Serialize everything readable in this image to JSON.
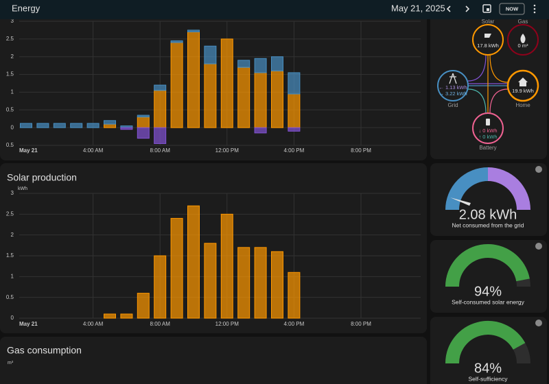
{
  "header": {
    "title": "Energy",
    "date": "May 21, 2025",
    "now_button": "NOW"
  },
  "chart_data": [
    {
      "type": "stacked-bar",
      "categories": [
        "May 21",
        null,
        null,
        null,
        "4:00 AM",
        null,
        null,
        null,
        "8:00 AM",
        null,
        null,
        null,
        "12:00 PM",
        null,
        null,
        null,
        "4:00 PM",
        null,
        null,
        null,
        "8:00 PM",
        null,
        null,
        null
      ],
      "series": [
        {
          "color": "#ff9800",
          "values": [
            0,
            0,
            0,
            0,
            0,
            0.1,
            0,
            0.3,
            1.05,
            2.4,
            2.7,
            1.8,
            2.5,
            1.7,
            1.55,
            1.6,
            0.95,
            null,
            null,
            null,
            null,
            null,
            null,
            null
          ]
        },
        {
          "color": "#488fc2",
          "values": [
            0.12,
            0.12,
            0.12,
            0.12,
            0.12,
            0.1,
            0.05,
            0.05,
            0.15,
            0.05,
            0.05,
            0.5,
            0,
            0.2,
            0.4,
            0.4,
            0.6,
            null,
            null,
            null,
            null,
            null,
            null,
            null
          ]
        },
        {
          "color": "#8353d4",
          "values": [
            0,
            0,
            0,
            0,
            0,
            0,
            -0.05,
            -0.3,
            -0.45,
            0,
            0,
            0,
            0,
            0,
            -0.15,
            0,
            -0.1,
            null,
            null,
            null,
            null,
            null,
            null,
            null
          ]
        }
      ],
      "ylim": [
        -0.5,
        3
      ],
      "yticks": [
        {
          "value": -0.5,
          "label": "0.5"
        },
        0,
        0.5,
        1,
        1.5,
        2,
        2.5,
        3
      ],
      "grid": true
    },
    {
      "type": "bar",
      "title": "Solar production",
      "y_label": "kWh",
      "categories": [
        "May 21",
        null,
        null,
        null,
        "4:00 AM",
        null,
        null,
        null,
        "8:00 AM",
        null,
        null,
        null,
        "12:00 PM",
        null,
        null,
        null,
        "4:00 PM",
        null,
        null,
        null,
        "8:00 PM",
        null,
        null,
        null
      ],
      "values": [
        null,
        null,
        null,
        null,
        null,
        0.1,
        0.1,
        0.6,
        1.5,
        2.4,
        2.7,
        1.8,
        2.5,
        1.7,
        1.7,
        1.6,
        1.1,
        null,
        null,
        null,
        null,
        null,
        null,
        null
      ],
      "color": "#ff9800",
      "ylim": [
        0,
        3
      ],
      "yticks": [
        0,
        0.5,
        1,
        1.5,
        2,
        2.5,
        3
      ],
      "grid": true
    }
  ],
  "distribution": {
    "solar": {
      "label": "Solar",
      "value": "17.8 kWh"
    },
    "gas": {
      "label": "Gas",
      "value": "0 m³"
    },
    "grid": {
      "label": "Grid",
      "returned": "← 1.13 kWh",
      "consumed": "→ 3.22 kWh"
    },
    "home": {
      "label": "Home",
      "value": "19.9 kWh"
    },
    "battery": {
      "label": "Battery",
      "in": "↓ 0 kWh",
      "out": "↑ 0 kWh"
    }
  },
  "gauges": [
    {
      "value": 2.08,
      "value_label": "2.08 kWh",
      "label": "Net consumed from the grid"
    },
    {
      "value": 94,
      "value_label": "94%",
      "label": "Self-consumed solar energy",
      "color": "#43a047"
    },
    {
      "value": 84,
      "value_label": "84%",
      "label": "Self-sufficiency",
      "color": "#43a047"
    }
  ],
  "gas_card": {
    "title": "Gas consumption",
    "unit": "m³"
  }
}
